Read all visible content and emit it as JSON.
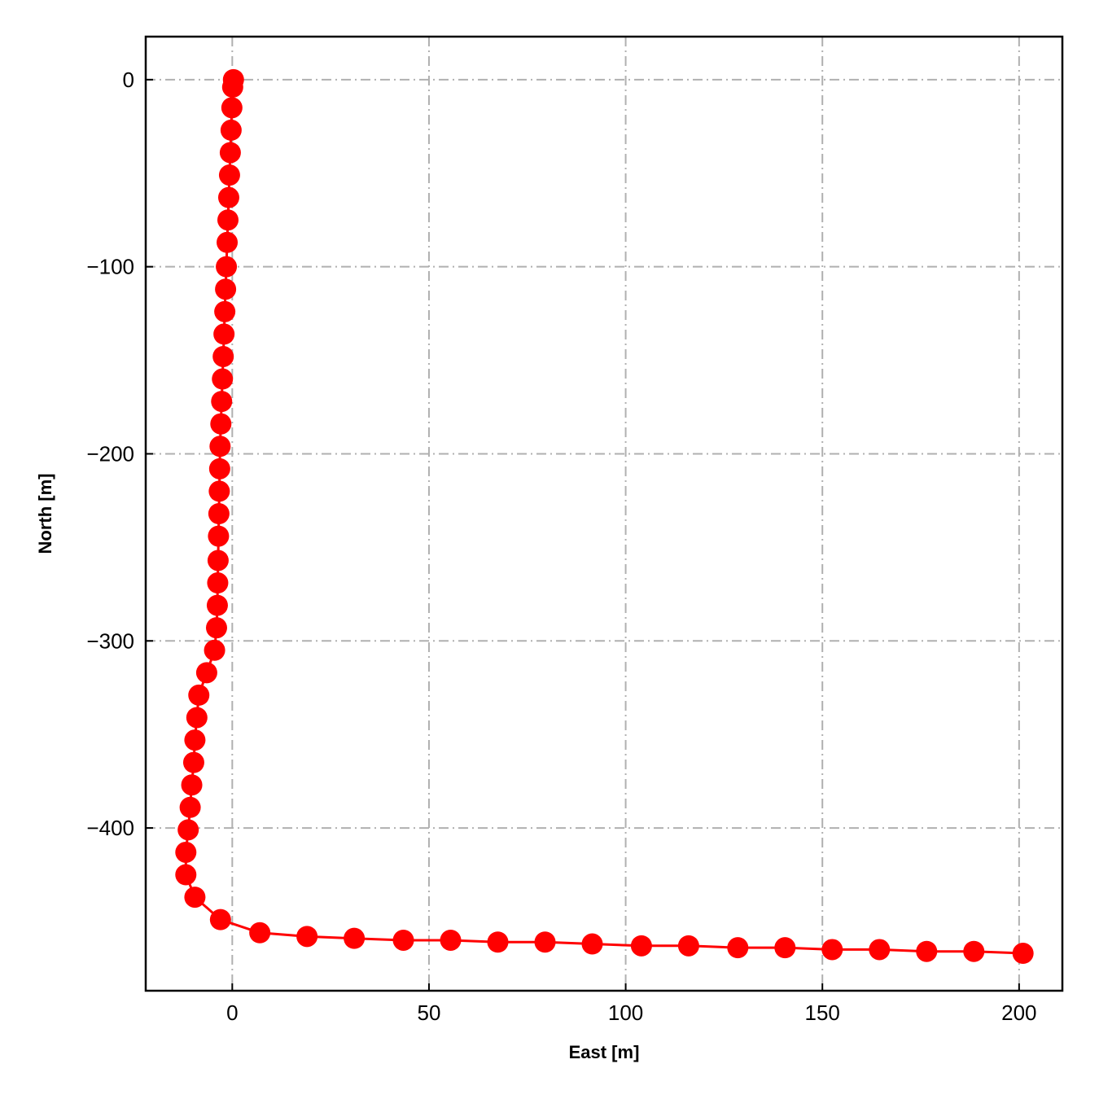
{
  "chart_data": {
    "type": "line",
    "xlabel": "East [m]",
    "ylabel": "North [m]",
    "xlim": [
      -22,
      211
    ],
    "ylim": [
      -487,
      23
    ],
    "xticks": [
      0,
      50,
      100,
      150,
      200
    ],
    "yticks": [
      0,
      -100,
      -200,
      -300,
      -400
    ],
    "xtick_labels": [
      "0",
      "50",
      "100",
      "150",
      "200"
    ],
    "ytick_labels": [
      "0",
      "−100",
      "−200",
      "−300",
      "−400"
    ],
    "grid": true,
    "legend": "none",
    "series": [
      {
        "color": "#ff0000",
        "marker": "circle",
        "x": [
          0.3,
          0.1,
          -0.1,
          -0.3,
          -0.5,
          -0.7,
          -0.9,
          -1.1,
          -1.3,
          -1.5,
          -1.7,
          -1.9,
          -2.1,
          -2.3,
          -2.5,
          -2.7,
          -2.9,
          -3.1,
          -3.2,
          -3.3,
          -3.4,
          -3.5,
          -3.6,
          -3.7,
          -3.8,
          -4.0,
          -4.5,
          -6.5,
          -8.5,
          -9.0,
          -9.5,
          -9.8,
          -10.3,
          -10.7,
          -11.2,
          -11.8,
          -11.8,
          -9.5,
          -3.0,
          7.0,
          19.0,
          31.0,
          43.5,
          55.5,
          67.5,
          79.5,
          91.5,
          104.0,
          116.0,
          128.5,
          140.5,
          152.5,
          164.5,
          176.5,
          188.5,
          201.0
        ],
        "y": [
          0,
          -4,
          -15,
          -27,
          -39,
          -51,
          -63,
          -75,
          -87,
          -100,
          -112,
          -124,
          -136,
          -148,
          -160,
          -172,
          -184,
          -196,
          -208,
          -220,
          -232,
          -244,
          -257,
          -269,
          -281,
          -293,
          -305,
          -317,
          -329,
          -341,
          -353,
          -365,
          -377,
          -389,
          -401,
          -413,
          -425,
          -437,
          -449,
          -456,
          -458,
          -459,
          -460,
          -460,
          -461,
          -461,
          -462,
          -463,
          -463,
          -464,
          -464,
          -465,
          -465,
          -466,
          -466,
          -467
        ]
      }
    ]
  }
}
